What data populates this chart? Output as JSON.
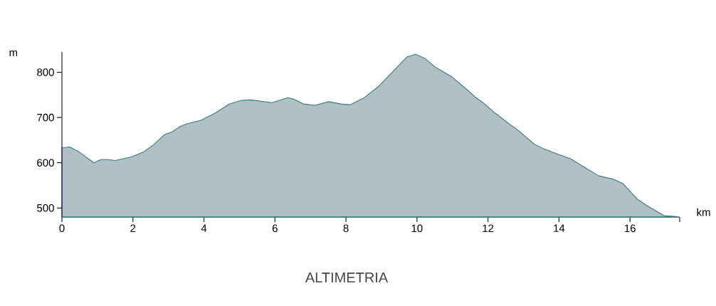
{
  "chart_data": {
    "type": "area",
    "title": "ALTIMETRIA",
    "xlabel": "km",
    "ylabel": "m",
    "x": [
      0,
      0.22,
      0.5,
      0.9,
      1.1,
      1.3,
      1.5,
      1.96,
      2.3,
      2.6,
      2.9,
      3.1,
      3.32,
      3.52,
      3.92,
      4.32,
      4.72,
      5.06,
      5.32,
      5.92,
      6.36,
      6.52,
      6.8,
      7.12,
      7.52,
      7.86,
      8.12,
      8.52,
      8.92,
      9.3,
      9.72,
      9.96,
      10.22,
      10.52,
      10.72,
      11.0,
      11.46,
      11.66,
      11.86,
      12.2,
      12.56,
      12.86,
      13.32,
      13.6,
      14.0,
      14.32,
      14.66,
      15.12,
      15.52,
      15.8,
      16.2,
      16.46,
      16.96,
      17.32
    ],
    "series": [
      {
        "color": "#3a7a80",
        "values": [
          633,
          635,
          623,
          600,
          607,
          607,
          605,
          613,
          624,
          641,
          663,
          668,
          680,
          686,
          694,
          710,
          730,
          738,
          739,
          733,
          744,
          741,
          730,
          727,
          735,
          730,
          728,
          744,
          769,
          800,
          834,
          840,
          831,
          811,
          802,
          789,
          758,
          744,
          733,
          710,
          688,
          671,
          640,
          630,
          618,
          609,
          593,
          571,
          564,
          554,
          520,
          506,
          483,
          481
        ]
      }
    ],
    "xlim": [
      0,
      17.4
    ],
    "ylim": [
      480,
      845
    ],
    "xticks": [
      0,
      2,
      4,
      6,
      8,
      10,
      12,
      14,
      16,
      {
        "value": 17.4,
        "label": null
      }
    ],
    "yticks": [
      500,
      600,
      700,
      800
    ]
  }
}
